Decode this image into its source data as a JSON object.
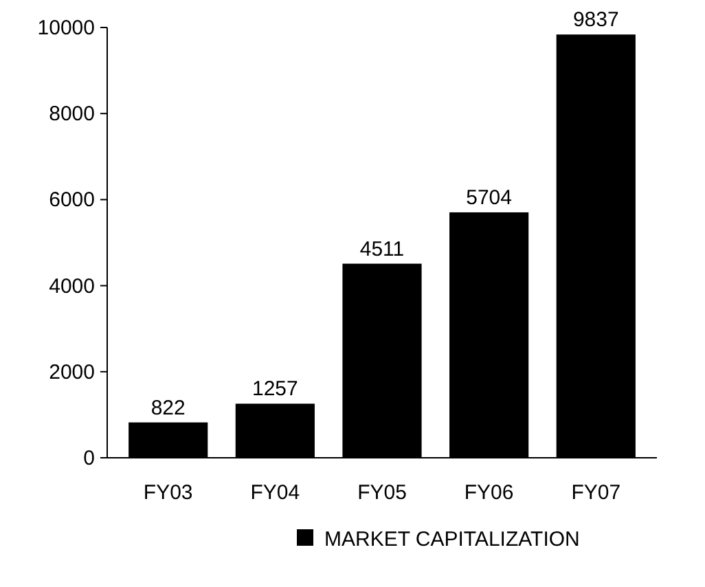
{
  "chart_data": {
    "type": "bar",
    "categories": [
      "FY03",
      "FY04",
      "FY05",
      "FY06",
      "FY07"
    ],
    "series": [
      {
        "name": "MARKET CAPITALIZATION",
        "color": "#000000",
        "values": [
          822,
          1257,
          4511,
          5704,
          9837
        ]
      }
    ],
    "ylim": [
      0,
      10000
    ],
    "yticks": [
      0,
      2000,
      4000,
      6000,
      8000,
      10000
    ],
    "data_labels": true,
    "legend": "bottom",
    "grid": false
  }
}
